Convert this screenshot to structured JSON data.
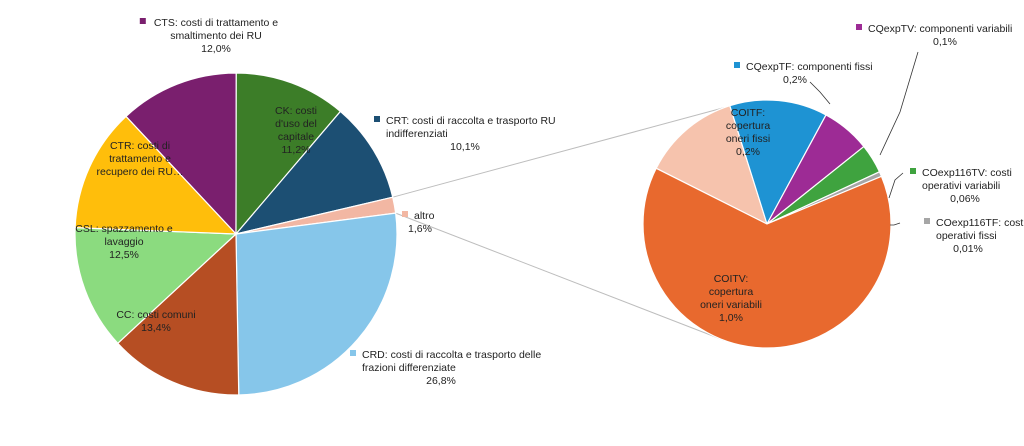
{
  "colors": {
    "CTS": "#7a1f6e",
    "CK": "#3c7d28",
    "CRT": "#1c4f73",
    "altro": "#f2b7a3",
    "CRD": "#86c6ea",
    "CC": "#b64e23",
    "CSL": "#8bdb7f",
    "CTR": "#ffbe0b",
    "COITF": "#f6c3ad",
    "CQexpTF": "#1e93d3",
    "CQexpTV": "#9d2b95",
    "COexp116TV": "#3fa33f",
    "COexp116TF": "#a6a6a6",
    "COITV": "#e8692e",
    "connector": "#bdbdbd"
  },
  "chart_data": [
    {
      "type": "pie",
      "title": "",
      "slices": [
        {
          "key": "CTS",
          "label": "CTS: costi di trattamento e smaltimento dei RU",
          "value": 12.0,
          "value_label": "12,0%"
        },
        {
          "key": "CK",
          "label": "CK: costi d'uso del capitale",
          "value": 11.2,
          "value_label": "11,2%"
        },
        {
          "key": "CRT",
          "label": "CRT: costi di raccolta e trasporto RU indifferenziati",
          "value": 10.1,
          "value_label": "10,1%"
        },
        {
          "key": "altro",
          "label": "altro",
          "value": 1.6,
          "value_label": "1,6%"
        },
        {
          "key": "CRD",
          "label": "CRD: costi di raccolta e trasporto delle frazioni differenziate",
          "value": 26.8,
          "value_label": "26,8%"
        },
        {
          "key": "CC",
          "label": "CC: costi comuni",
          "value": 13.4,
          "value_label": "13,4%"
        },
        {
          "key": "CSL",
          "label": "CSL: spazzamento e lavaggio",
          "value": 12.5,
          "value_label": "12,5%"
        },
        {
          "key": "CTR",
          "label": "CTR: costi di trattamento e recupero dei RU…",
          "value": 12.4,
          "value_label": ""
        }
      ]
    },
    {
      "type": "pie",
      "title": "",
      "slices": [
        {
          "key": "COITF",
          "label": "COITF: copertura oneri fissi",
          "value": 0.2,
          "value_label": "0,2%"
        },
        {
          "key": "CQexpTF",
          "label": "CQexpTF: componenti fissi",
          "value": 0.2,
          "value_label": "0,2%"
        },
        {
          "key": "CQexpTV",
          "label": "CQexpTV: componenti variabili",
          "value": 0.1,
          "value_label": "0,1%"
        },
        {
          "key": "COexp116TV",
          "label": "COexp116TV: costi operativi variabili",
          "value": 0.06,
          "value_label": "0,06%"
        },
        {
          "key": "COexp116TF",
          "label": "COexp116TF: costi operativi fissi",
          "value": 0.01,
          "value_label": "0,01%"
        },
        {
          "key": "COITV",
          "label": "COITV: copertura oneri variabili",
          "value": 1.0,
          "value_label": "1,0%"
        }
      ]
    }
  ]
}
